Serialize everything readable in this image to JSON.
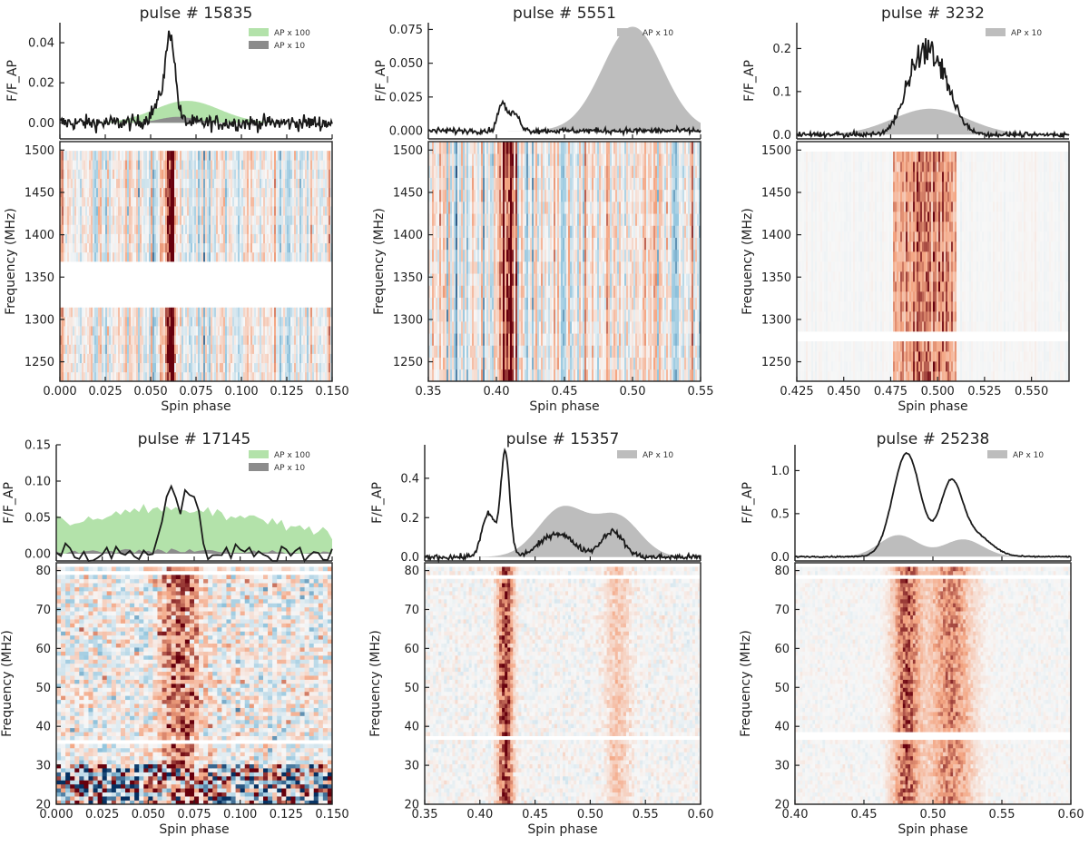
{
  "figure": {
    "description_note": "Six single-pulse panels"
  },
  "colors": {
    "green_fill": "#b3e2aa",
    "grey_fill": "#bdbdbd",
    "dark_grey_fill": "#8c8c8c",
    "line": "#1a1a1a",
    "red": "#b2182b",
    "blue": "#2166ac"
  },
  "chart_data": [
    {
      "type": "line",
      "title": "pulse # 15835",
      "ylabel_top": "F/F_AP",
      "ylabel_bottom": "Frequency (MHz)",
      "xlabel": "Spin phase",
      "xlim": [
        0.0,
        0.15
      ],
      "ylim_top": [
        -0.008,
        0.05
      ],
      "ylim_bottom": [
        1227,
        1510
      ],
      "xticks": [
        0.0,
        0.025,
        0.05,
        0.075,
        0.1,
        0.125,
        0.15
      ],
      "xtick_labels": [
        "0.000",
        "0.025",
        "0.050",
        "0.075",
        "0.100",
        "0.125",
        "0.150"
      ],
      "yticks_top": [
        0.0,
        0.02,
        0.04
      ],
      "ytick_labels_top": [
        "0.00",
        "0.02",
        "0.04"
      ],
      "yticks_bottom": [
        1250,
        1300,
        1350,
        1400,
        1450,
        1500
      ],
      "ytick_labels_bottom": [
        "1250",
        "1300",
        "1350",
        "1400",
        "1450",
        "1500"
      ],
      "legend": [
        {
          "label": "AP x 100",
          "color": "#b3e2aa"
        },
        {
          "label": "AP x 10",
          "color": "#8c8c8c"
        }
      ],
      "profile_peaks": [
        {
          "center": 0.061,
          "height": 0.036,
          "width": 0.0025
        },
        {
          "center": 0.057,
          "height": 0.012,
          "width": 0.005
        }
      ],
      "noise_level": 0.0028,
      "ap_fill": {
        "color": "#b3e2aa",
        "center": 0.07,
        "height": 0.011,
        "width": 0.018
      },
      "ap_fill2": {
        "color": "#8c8c8c",
        "center": 0.065,
        "height": 0.003,
        "width": 0.01
      },
      "dynspec": {
        "band_center": 0.061,
        "band_width": 0.003,
        "band_strength": 1.0,
        "gaps_mhz": [
          [
            1317,
            1373
          ]
        ],
        "noise": 0.55,
        "block_rows": 26
      }
    },
    {
      "type": "line",
      "title": "pulse # 5551",
      "ylabel_top": "F/F_AP",
      "ylabel_bottom": "Frequency (MHz)",
      "xlabel": "Spin phase",
      "xlim": [
        0.35,
        0.55
      ],
      "ylim_top": [
        -0.006,
        0.08
      ],
      "ylim_bottom": [
        1227,
        1510
      ],
      "xticks": [
        0.35,
        0.4,
        0.45,
        0.5,
        0.55
      ],
      "xtick_labels": [
        "0.35",
        "0.40",
        "0.45",
        "0.50",
        "0.55"
      ],
      "yticks_top": [
        0.0,
        0.025,
        0.05,
        0.075
      ],
      "ytick_labels_top": [
        "0.000",
        "0.025",
        "0.050",
        "0.075"
      ],
      "yticks_bottom": [
        1250,
        1300,
        1350,
        1400,
        1450,
        1500
      ],
      "ytick_labels_bottom": [
        "1250",
        "1300",
        "1350",
        "1400",
        "1450",
        "1500"
      ],
      "legend": [
        {
          "label": "AP x 10",
          "color": "#bdbdbd"
        }
      ],
      "profile_peaks": [
        {
          "center": 0.404,
          "height": 0.02,
          "width": 0.003
        },
        {
          "center": 0.413,
          "height": 0.013,
          "width": 0.004
        }
      ],
      "noise_level": 0.0015,
      "ap_fill": {
        "color": "#bdbdbd",
        "center": 0.5,
        "height": 0.077,
        "width": 0.022
      },
      "dynspec": {
        "band_center": 0.408,
        "band_width": 0.004,
        "band_strength": 0.9,
        "gaps_mhz": [],
        "noise": 0.6,
        "block_rows": 20
      }
    },
    {
      "type": "line",
      "title": "pulse # 3232",
      "ylabel_top": "F/F_AP",
      "ylabel_bottom": "Frequency (MHz)",
      "xlabel": "Spin phase",
      "xlim": [
        0.425,
        0.57
      ],
      "ylim_top": [
        -0.01,
        0.26
      ],
      "ylim_bottom": [
        1227,
        1510
      ],
      "xticks": [
        0.425,
        0.45,
        0.475,
        0.5,
        0.525,
        0.55
      ],
      "xtick_labels": [
        "0.425",
        "0.450",
        "0.475",
        "0.500",
        "0.525",
        "0.550"
      ],
      "yticks_top": [
        0.0,
        0.1,
        0.2
      ],
      "ytick_labels_top": [
        "0.0",
        "0.1",
        "0.2"
      ],
      "yticks_bottom": [
        1250,
        1300,
        1350,
        1400,
        1450,
        1500
      ],
      "ytick_labels_bottom": [
        "1250",
        "1300",
        "1350",
        "1400",
        "1450",
        "1500"
      ],
      "legend": [
        {
          "label": "AP x 10",
          "color": "#bdbdbd"
        }
      ],
      "profile_peaks": [
        {
          "center": 0.497,
          "height": 0.18,
          "width": 0.009
        },
        {
          "center": 0.486,
          "height": 0.06,
          "width": 0.006
        }
      ],
      "noise_level": 0.004,
      "profile_jitter": 0.06,
      "ap_fill": {
        "color": "#bdbdbd",
        "center": 0.496,
        "height": 0.06,
        "width": 0.02
      },
      "dynspec": {
        "band_center": 0.495,
        "band_width": 0.012,
        "band_strength": 0.85,
        "band_flat": true,
        "band_min": 0.476,
        "band_max": 0.51,
        "gaps_mhz": [
          [
            1270,
            1283
          ]
        ],
        "noise": 0.05,
        "block_rows": 24
      }
    },
    {
      "type": "line",
      "title": "pulse # 17145",
      "ylabel_top": "F/F_AP",
      "ylabel_bottom": "Frequency (MHz)",
      "xlabel": "Spin phase",
      "xlim": [
        0.0,
        0.15
      ],
      "ylim_top": [
        -0.01,
        0.15
      ],
      "ylim_bottom": [
        20,
        82
      ],
      "xticks": [
        0.0,
        0.025,
        0.05,
        0.075,
        0.1,
        0.125,
        0.15
      ],
      "xtick_labels": [
        "0.000",
        "0.025",
        "0.050",
        "0.075",
        "0.100",
        "0.125",
        "0.150"
      ],
      "yticks_top": [
        0.0,
        0.05,
        0.1,
        0.15
      ],
      "ytick_labels_top": [
        "0.00",
        "0.05",
        "0.10",
        "0.15"
      ],
      "yticks_bottom": [
        20,
        30,
        40,
        50,
        60,
        70,
        80
      ],
      "ytick_labels_bottom": [
        "20",
        "30",
        "40",
        "50",
        "60",
        "70",
        "80"
      ],
      "legend": [
        {
          "label": "AP x 100",
          "color": "#b3e2aa"
        },
        {
          "label": "AP x 10",
          "color": "#8c8c8c"
        }
      ],
      "profile_peaks": [
        {
          "center": 0.062,
          "height": 0.095,
          "width": 0.004
        },
        {
          "center": 0.073,
          "height": 0.085,
          "width": 0.004
        }
      ],
      "noise_level": 0.01,
      "coarse": 60,
      "ap_fill": {
        "color": "#b3e2aa",
        "center": 0.06,
        "height": 0.045,
        "width": 0.06,
        "base": 0.015
      },
      "ap_fill2": {
        "color": "#8c8c8c",
        "center": 0.065,
        "height": 0.004,
        "width": 0.05
      },
      "dynspec": {
        "band_center": 0.068,
        "band_width": 0.008,
        "band_strength": 0.7,
        "gaps_mhz": [
          [
            36,
            37
          ],
          [
            79,
            80
          ]
        ],
        "noise": 0.35,
        "block_rows": 60,
        "block_cols": 60,
        "low_noise_below": 30
      }
    },
    {
      "type": "line",
      "title": "pulse # 15357",
      "ylabel_top": "F/F_AP",
      "ylabel_bottom": "Frequency (MHz)",
      "xlabel": "Spin phase",
      "xlim": [
        0.35,
        0.6
      ],
      "ylim_top": [
        -0.02,
        0.57
      ],
      "ylim_bottom": [
        20,
        82
      ],
      "xticks": [
        0.35,
        0.4,
        0.45,
        0.5,
        0.55,
        0.6
      ],
      "xtick_labels": [
        "0.35",
        "0.40",
        "0.45",
        "0.50",
        "0.55",
        "0.60"
      ],
      "yticks_top": [
        0.0,
        0.2,
        0.4
      ],
      "ytick_labels_top": [
        "0.0",
        "0.2",
        "0.4"
      ],
      "yticks_bottom": [
        20,
        30,
        40,
        50,
        60,
        70,
        80
      ],
      "ytick_labels_bottom": [
        "20",
        "30",
        "40",
        "50",
        "60",
        "70",
        "80"
      ],
      "legend": [
        {
          "label": "AP x 10",
          "color": "#bdbdbd"
        }
      ],
      "profile_peaks": [
        {
          "center": 0.423,
          "height": 0.53,
          "width": 0.004
        },
        {
          "center": 0.408,
          "height": 0.22,
          "width": 0.006
        },
        {
          "center": 0.47,
          "height": 0.12,
          "width": 0.015
        },
        {
          "center": 0.52,
          "height": 0.13,
          "width": 0.01
        }
      ],
      "noise_level": 0.01,
      "ap_fill": {
        "color": "#bdbdbd",
        "center": 0.475,
        "height": 0.25,
        "width": 0.022,
        "second": {
          "center": 0.525,
          "height": 0.2,
          "width": 0.02
        }
      },
      "dynspec": {
        "band_center": 0.423,
        "band_width": 0.005,
        "band_strength": 0.9,
        "band2_center": 0.525,
        "band2_strength": 0.3,
        "gaps_mhz": [
          [
            36.5,
            37.5
          ],
          [
            78,
            79
          ]
        ],
        "noise": 0.1,
        "block_rows": 60,
        "block_cols": 100
      }
    },
    {
      "type": "line",
      "title": "pulse # 25238",
      "ylabel_top": "F/F_AP",
      "ylabel_bottom": "Frequency (MHz)",
      "xlabel": "Spin phase",
      "xlim": [
        0.4,
        0.6
      ],
      "ylim_top": [
        -0.05,
        1.3
      ],
      "ylim_bottom": [
        20,
        82
      ],
      "xticks": [
        0.4,
        0.45,
        0.5,
        0.55,
        0.6
      ],
      "xtick_labels": [
        "0.40",
        "0.45",
        "0.50",
        "0.55",
        "0.60"
      ],
      "yticks_top": [
        0.0,
        0.5,
        1.0
      ],
      "ytick_labels_top": [
        "0.0",
        "0.5",
        "1.0"
      ],
      "yticks_bottom": [
        20,
        30,
        40,
        50,
        60,
        70,
        80
      ],
      "ytick_labels_bottom": [
        "20",
        "30",
        "40",
        "50",
        "60",
        "70",
        "80"
      ],
      "legend": [
        {
          "label": "AP x 10",
          "color": "#bdbdbd"
        }
      ],
      "profile_peaks": [
        {
          "center": 0.481,
          "height": 1.2,
          "width": 0.01
        },
        {
          "center": 0.513,
          "height": 0.8,
          "width": 0.008
        },
        {
          "center": 0.53,
          "height": 0.25,
          "width": 0.012
        }
      ],
      "noise_level": 0.005,
      "ap_fill": {
        "color": "#bdbdbd",
        "center": 0.475,
        "height": 0.25,
        "width": 0.014,
        "second": {
          "center": 0.522,
          "height": 0.2,
          "width": 0.014
        }
      },
      "dynspec": {
        "band_center": 0.481,
        "band_width": 0.007,
        "band_strength": 0.75,
        "band2_center": 0.513,
        "band2_strength": 0.6,
        "gaps_mhz": [
          [
            37,
            38.5
          ],
          [
            78,
            79
          ]
        ],
        "noise": 0.06,
        "block_rows": 60,
        "block_cols": 110
      }
    }
  ]
}
